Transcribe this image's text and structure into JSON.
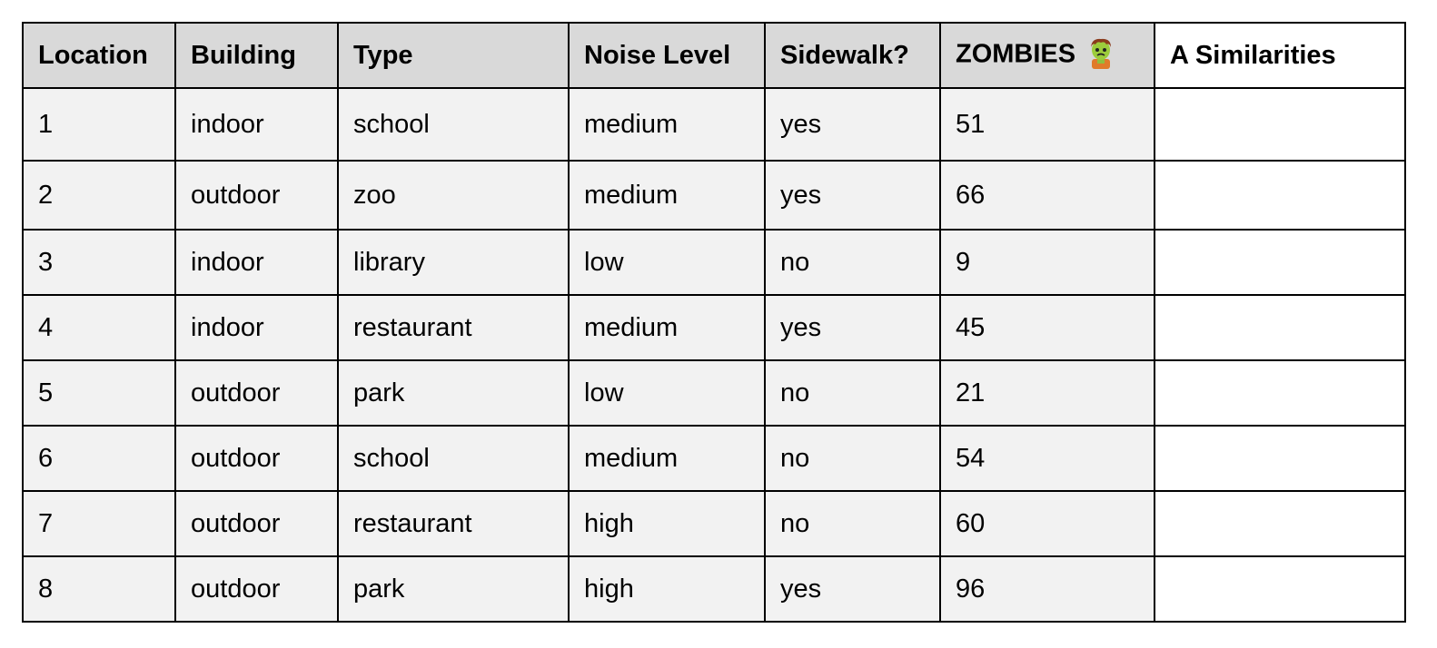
{
  "table": {
    "headers": {
      "location": "Location",
      "building": "Building",
      "type": "Type",
      "noise": "Noise Level",
      "sidewalk": "Sidewalk?",
      "zombies": "ZOMBIES",
      "zombies_icon": "zombie-icon",
      "similarities": "A Similarities"
    },
    "rows": [
      {
        "location": "1",
        "building": "indoor",
        "type": "school",
        "noise": "medium",
        "sidewalk": "yes",
        "zombies": "51",
        "similarities": ""
      },
      {
        "location": "2",
        "building": "outdoor",
        "type": "zoo",
        "noise": "medium",
        "sidewalk": "yes",
        "zombies": "66",
        "similarities": ""
      },
      {
        "location": "3",
        "building": "indoor",
        "type": "library",
        "noise": "low",
        "sidewalk": "no",
        "zombies": "9",
        "similarities": ""
      },
      {
        "location": "4",
        "building": "indoor",
        "type": "restaurant",
        "noise": "medium",
        "sidewalk": "yes",
        "zombies": "45",
        "similarities": ""
      },
      {
        "location": "5",
        "building": "outdoor",
        "type": "park",
        "noise": "low",
        "sidewalk": "no",
        "zombies": "21",
        "similarities": ""
      },
      {
        "location": "6",
        "building": "outdoor",
        "type": "school",
        "noise": "medium",
        "sidewalk": "no",
        "zombies": "54",
        "similarities": ""
      },
      {
        "location": "7",
        "building": "outdoor",
        "type": "restaurant",
        "noise": "high",
        "sidewalk": "no",
        "zombies": "60",
        "similarities": ""
      },
      {
        "location": "8",
        "building": "outdoor",
        "type": "park",
        "noise": "high",
        "sidewalk": "yes",
        "zombies": "96",
        "similarities": ""
      }
    ]
  },
  "colors": {
    "header_bg": "#d9d9d9",
    "cell_bg": "#f2f2f2",
    "similarities_bg": "#ffffff",
    "border": "#000000"
  }
}
